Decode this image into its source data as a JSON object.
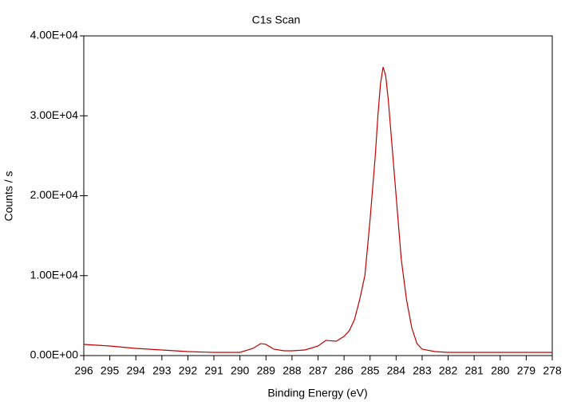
{
  "chart_data": {
    "type": "line",
    "title": "C1s Scan",
    "x_label": "Binding Energy (eV)",
    "y_label": "Counts / s",
    "x": [
      296,
      295,
      294,
      293,
      292,
      291,
      290,
      289.5,
      289.2,
      289,
      288.7,
      288.3,
      288,
      287.5,
      287,
      286.7,
      286.3,
      286,
      285.8,
      285.6,
      285.4,
      285.2,
      285,
      284.8,
      284.7,
      284.6,
      284.5,
      284.4,
      284.3,
      284.2,
      284,
      283.8,
      283.6,
      283.4,
      283.2,
      283,
      282.5,
      282,
      281,
      280,
      279,
      278
    ],
    "series": [
      {
        "name": "C1s",
        "color": "#c00000",
        "values": [
          1400,
          1200,
          900,
          700,
          500,
          400,
          400,
          900,
          1500,
          1400,
          800,
          600,
          600,
          700,
          1200,
          1900,
          1800,
          2400,
          3100,
          4500,
          7000,
          10000,
          17000,
          25000,
          30000,
          34000,
          36100,
          35000,
          32000,
          28000,
          20000,
          12000,
          7000,
          3500,
          1500,
          800,
          500,
          400,
          400,
          400,
          400,
          400
        ]
      }
    ],
    "xlim": [
      296,
      278
    ],
    "xticks": [
      296,
      295,
      294,
      293,
      292,
      291,
      290,
      289,
      288,
      287,
      286,
      285,
      284,
      283,
      282,
      281,
      280,
      279,
      278
    ],
    "ylim": [
      0,
      40000
    ],
    "yticks": [
      {
        "value": 0,
        "label": "0.00E+00"
      },
      {
        "value": 10000,
        "label": "1.00E+04"
      },
      {
        "value": 20000,
        "label": "2.00E+04"
      },
      {
        "value": 30000,
        "label": "3.00E+04"
      },
      {
        "value": 40000,
        "label": "4.00E+04"
      }
    ]
  }
}
